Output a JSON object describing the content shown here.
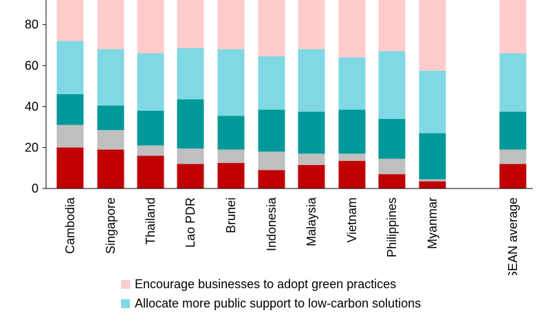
{
  "chart_data": {
    "type": "bar",
    "stacked": true,
    "title": "",
    "xlabel": "",
    "ylabel": "",
    "ylim": [
      0,
      92
    ],
    "yticks": [
      0,
      20,
      40,
      60,
      80
    ],
    "grid": false,
    "legend_position": "bottom",
    "categories": [
      "Cambodia",
      "Singapore",
      "Thailand",
      "Lao PDR",
      "Brunei",
      "Indonesia",
      "Malaysia",
      "Vietnam",
      "Philippines",
      "Myanmar",
      "ASEAN average"
    ],
    "series": [
      {
        "key": "dark_red",
        "color": "#c00000",
        "values": [
          20,
          19,
          16,
          12,
          12.5,
          9,
          11.5,
          13.5,
          7,
          3.5,
          12
        ]
      },
      {
        "key": "gray",
        "color": "#bfbfbf",
        "values": [
          11,
          9.5,
          5,
          7.5,
          6.5,
          9,
          5.5,
          3.5,
          7.5,
          1,
          7
        ]
      },
      {
        "key": "teal",
        "color": "#009999",
        "values": [
          15,
          12,
          17,
          24,
          16.5,
          20.5,
          20.5,
          21.5,
          19.5,
          22.5,
          18.5
        ]
      },
      {
        "key": "light_blue",
        "color": "#7fd8e4",
        "values": [
          26,
          27.5,
          28,
          25,
          32.5,
          26,
          30.5,
          25.5,
          33,
          30.5,
          28.5
        ]
      },
      {
        "name": "Encourage businesses to adopt green practices",
        "key": "pink",
        "color": "#ffcccc",
        "values": [
          20,
          24,
          26,
          23.5,
          24,
          27.5,
          24,
          28,
          25,
          34.5,
          26
        ]
      }
    ],
    "legend": [
      {
        "label": "Encourage businesses to adopt green practices",
        "color": "#ffcccc"
      },
      {
        "label": "Allocate more public support to low-carbon solutions",
        "color": "#7fd8e4"
      }
    ]
  }
}
